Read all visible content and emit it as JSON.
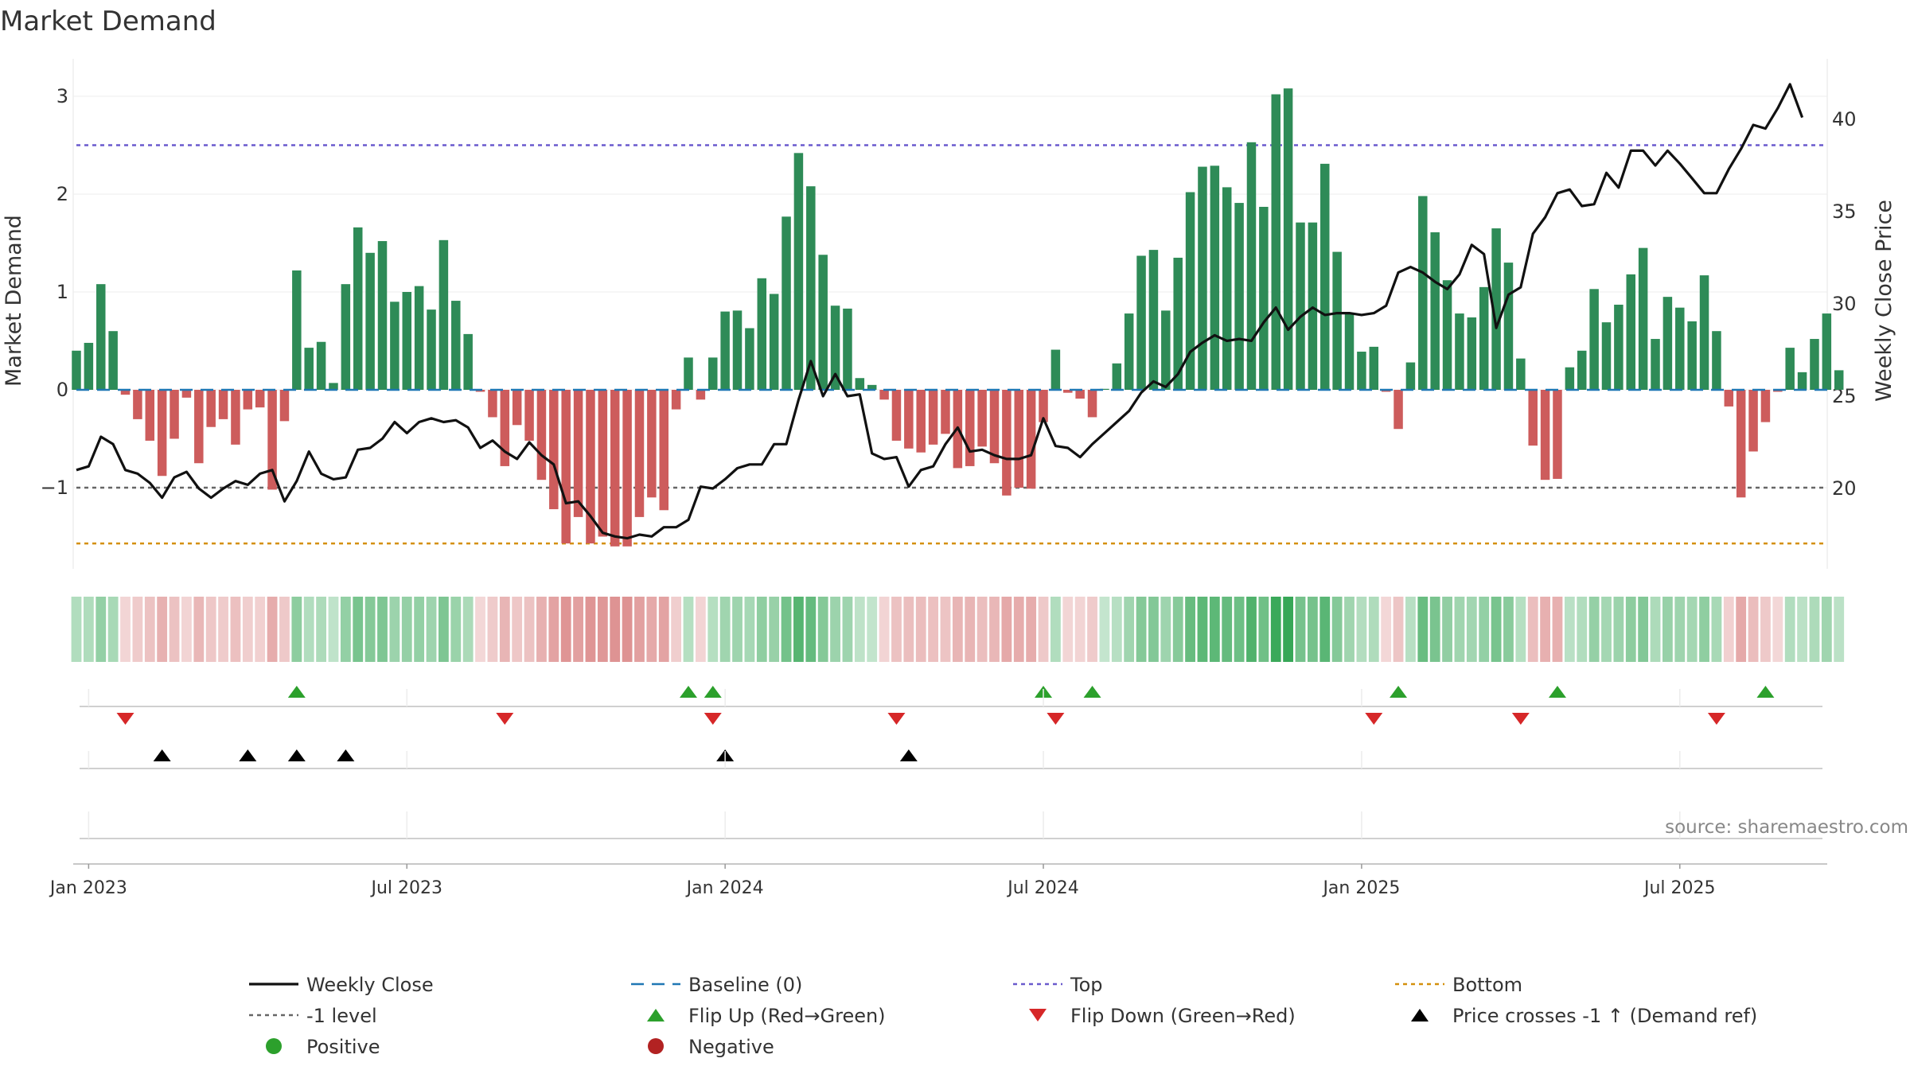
{
  "colors": {
    "positive_bar": "#2e8b57",
    "negative_bar": "#cd5c5c",
    "line": "#111111",
    "baseline": "#1f77b4",
    "top": "#6a5acd",
    "bottom": "#d4900c",
    "minus_one": "#666666",
    "flip_up": "#2ca02c",
    "flip_down": "#d62728",
    "cross": "#000000",
    "legend_positive": "#2ca02c",
    "legend_negative": "#b22222"
  },
  "chart_data": {
    "type": "bar+line",
    "title": "Market Demand",
    "ylabel_left": "Market Demand",
    "ylabel_right": "Weekly Close Price",
    "source": "source: sharemaestro.com",
    "left_ylim": [
      -1.85,
      3.35
    ],
    "right_ylim": [
      16.5,
      43.5
    ],
    "left_ticks": [
      {
        "v": 3,
        "l": "3"
      },
      {
        "v": 2,
        "l": "2"
      },
      {
        "v": 1,
        "l": "1"
      },
      {
        "v": 0,
        "l": "0"
      },
      {
        "v": -1,
        "l": "−1"
      }
    ],
    "right_ticks": [
      {
        "v": 40,
        "l": "40"
      },
      {
        "v": 35,
        "l": "35"
      },
      {
        "v": 30,
        "l": "30"
      },
      {
        "v": 25,
        "l": "25"
      },
      {
        "v": 20,
        "l": "20"
      }
    ],
    "x_ticks": [
      {
        "w": 1,
        "l": "Jan 2023"
      },
      {
        "w": 27,
        "l": "Jul 2023"
      },
      {
        "w": 53,
        "l": "Jan 2024"
      },
      {
        "w": 79,
        "l": "Jul 2024"
      },
      {
        "w": 105,
        "l": "Jan 2025"
      },
      {
        "w": 131,
        "l": "Jul 2025"
      }
    ],
    "levels": {
      "top": 2.5,
      "bottom": -1.57,
      "minus_one": -1,
      "baseline": 0
    },
    "demand": [
      0.4,
      0.48,
      1.08,
      0.6,
      -0.05,
      -0.3,
      -0.52,
      -0.88,
      -0.5,
      -0.08,
      -0.75,
      -0.38,
      -0.3,
      -0.56,
      -0.2,
      -0.18,
      -1.02,
      -0.32,
      1.22,
      0.43,
      0.49,
      0.07,
      1.08,
      1.66,
      1.4,
      1.52,
      0.9,
      1.0,
      1.06,
      0.82,
      1.53,
      0.91,
      0.57,
      -0.02,
      -0.28,
      -0.78,
      -0.36,
      -0.52,
      -0.92,
      -1.22,
      -1.57,
      -1.3,
      -1.57,
      -1.5,
      -1.6,
      -1.6,
      -1.3,
      -1.1,
      -1.23,
      -0.2,
      0.33,
      -0.1,
      0.33,
      0.8,
      0.81,
      0.63,
      1.14,
      0.98,
      1.77,
      2.42,
      2.08,
      1.38,
      0.86,
      0.83,
      0.12,
      0.05,
      -0.1,
      -0.52,
      -0.6,
      -0.64,
      -0.56,
      -0.45,
      -0.8,
      -0.78,
      -0.58,
      -0.75,
      -1.08,
      -1.0,
      -1.01,
      -0.33,
      0.41,
      -0.03,
      -0.09,
      -0.28,
      0.01,
      0.27,
      0.78,
      1.37,
      1.43,
      0.81,
      1.35,
      2.02,
      2.28,
      2.29,
      2.07,
      1.91,
      2.53,
      1.87,
      3.02,
      3.08,
      1.71,
      1.71,
      2.31,
      1.41,
      0.78,
      0.39,
      0.44,
      -0.02,
      -0.4,
      0.28,
      1.98,
      1.61,
      1.12,
      0.78,
      0.74,
      1.05,
      1.65,
      1.3,
      0.32,
      -0.57,
      -0.92,
      -0.91,
      0.23,
      0.4,
      1.03,
      0.69,
      0.87,
      1.18,
      1.45,
      0.52,
      0.95,
      0.84,
      0.7,
      1.17,
      0.6,
      -0.17,
      -1.1,
      -0.63,
      -0.33,
      -0.02,
      0.43,
      0.18,
      0.52,
      0.78,
      0.2
    ],
    "close": [
      21.0,
      21.2,
      22.8,
      22.4,
      21.0,
      20.8,
      20.3,
      19.5,
      20.6,
      20.9,
      20.0,
      19.5,
      20.0,
      20.4,
      20.2,
      20.8,
      21.0,
      19.3,
      20.4,
      22.0,
      20.8,
      20.5,
      20.6,
      22.1,
      22.2,
      22.7,
      23.6,
      23.0,
      23.6,
      23.8,
      23.6,
      23.7,
      23.3,
      22.2,
      22.6,
      22.0,
      21.6,
      22.5,
      21.8,
      21.3,
      19.2,
      19.3,
      18.5,
      17.6,
      17.4,
      17.3,
      17.5,
      17.4,
      17.9,
      17.9,
      18.3,
      20.1,
      20.0,
      20.5,
      21.1,
      21.3,
      21.3,
      22.4,
      22.4,
      24.8,
      26.9,
      25.0,
      26.2,
      25.0,
      25.1,
      21.9,
      21.6,
      21.7,
      20.1,
      21.0,
      21.2,
      22.4,
      23.3,
      22.0,
      22.1,
      21.8,
      21.6,
      21.6,
      21.8,
      23.8,
      22.3,
      22.2,
      21.7,
      22.4,
      23.0,
      23.6,
      24.2,
      25.2,
      25.8,
      25.5,
      26.2,
      27.4,
      27.9,
      28.3,
      28.0,
      28.1,
      28.0,
      29.0,
      29.8,
      28.6,
      29.3,
      29.8,
      29.4,
      29.5,
      29.5,
      29.4,
      29.5,
      29.9,
      31.7,
      32.0,
      31.7,
      31.2,
      30.8,
      31.6,
      33.2,
      32.7,
      28.7,
      30.5,
      30.9,
      33.8,
      34.7,
      36.0,
      36.2,
      35.3,
      35.4,
      37.1,
      36.3,
      38.3,
      38.3,
      37.5,
      38.3,
      37.6,
      36.8,
      36.0,
      36.0,
      37.3,
      38.4,
      39.7,
      39.5,
      40.6,
      41.9,
      40.1
    ],
    "flip_up_weeks": [
      18,
      50,
      52,
      79,
      83,
      108,
      121,
      138
    ],
    "flip_down_weeks": [
      4,
      35,
      52,
      67,
      80,
      106,
      118,
      134
    ],
    "cross_weeks": [
      7,
      14,
      18,
      22,
      53,
      68
    ]
  },
  "legend": [
    {
      "key": "close",
      "label": "Weekly Close"
    },
    {
      "key": "baseline",
      "label": "Baseline (0)"
    },
    {
      "key": "top",
      "label": "Top"
    },
    {
      "key": "bottom",
      "label": "Bottom"
    },
    {
      "key": "minus_one",
      "label": "-1 level"
    },
    {
      "key": "flip_up",
      "label": "Flip Up (Red→Green)"
    },
    {
      "key": "flip_down",
      "label": "Flip Down (Green→Red)"
    },
    {
      "key": "cross",
      "label": "Price crosses -1 ↑ (Demand ref)"
    },
    {
      "key": "positive",
      "label": "Positive"
    },
    {
      "key": "negative",
      "label": "Negative"
    }
  ]
}
